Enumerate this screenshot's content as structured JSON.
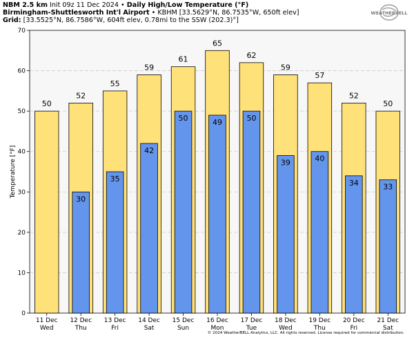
{
  "header": {
    "line1_bold": "NBM 2.5 km",
    "line1_init": "Init 09z 11 Dec 2024",
    "line1_sep": "•",
    "line1_title": "Daily High/Low Temperature (°F)",
    "line2_bold": "Birmingham-Shuttlesworth Int'l Airport",
    "line2_sep": "•",
    "line2_rest": "KBHM [33.5629°N, 86.7535°W, 650ft elev]",
    "line3_bold": "Grid:",
    "line3_rest": "[33.5525°N, 86.7586°W, 604ft elev, 0.78mi to the SSW (202.3)°]"
  },
  "logo": {
    "text": "WEATHERBELL",
    "icon": "weatherbell-swirl-logo"
  },
  "footer": "© 2024 WeatherBELL Analytics, LLC. All rights reserved. License required for commercial distribution.",
  "colors": {
    "high": "#ffe17a",
    "low": "#6495ed",
    "bar_edge": "#000000",
    "grid": "#cccccc",
    "plot_bg": "#f7f7f7"
  },
  "chart_data": {
    "type": "bar",
    "ylabel": "Temperature [°F]",
    "ylim": [
      0,
      70
    ],
    "yticks": [
      0,
      10,
      20,
      30,
      40,
      50,
      60,
      70
    ],
    "grid": true,
    "categories": [
      {
        "date": "11 Dec",
        "day": "Wed"
      },
      {
        "date": "12 Dec",
        "day": "Thu"
      },
      {
        "date": "13 Dec",
        "day": "Fri"
      },
      {
        "date": "14 Dec",
        "day": "Sat"
      },
      {
        "date": "15 Dec",
        "day": "Sun"
      },
      {
        "date": "16 Dec",
        "day": "Mon"
      },
      {
        "date": "17 Dec",
        "day": "Tue"
      },
      {
        "date": "18 Dec",
        "day": "Wed"
      },
      {
        "date": "19 Dec",
        "day": "Thu"
      },
      {
        "date": "20 Dec",
        "day": "Fri"
      },
      {
        "date": "21 Dec",
        "day": "Sat"
      }
    ],
    "series": [
      {
        "key": "high",
        "values": [
          50,
          52,
          55,
          59,
          61,
          65,
          62,
          59,
          57,
          52,
          50
        ]
      },
      {
        "key": "low",
        "values": [
          null,
          30,
          35,
          42,
          50,
          49,
          50,
          39,
          40,
          34,
          33
        ]
      }
    ]
  }
}
